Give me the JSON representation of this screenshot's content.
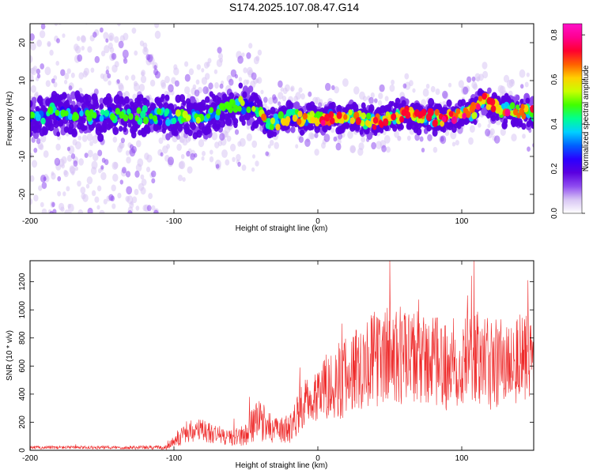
{
  "figure": {
    "title": "S174.2025.107.08.47.G14"
  },
  "chart_data": [
    {
      "type": "heatmap",
      "title": "",
      "xlabel": "Height of straight line (km)",
      "ylabel": "Frequency (Hz)",
      "xlim": [
        -200,
        150
      ],
      "ylim": [
        -25,
        25
      ],
      "xticks": [
        -200,
        -100,
        0,
        100
      ],
      "yticks": [
        -20,
        -10,
        0,
        10,
        20
      ],
      "grid": false,
      "colorbar": {
        "label": "Normalized spectral amplitude",
        "range": [
          0,
          0.85
        ],
        "ticks": [
          0.0,
          0.2,
          0.4,
          0.6,
          0.8
        ],
        "colors": [
          "#ffffff",
          "#d8c6f4",
          "#8f4cf0",
          "#5a00e0",
          "#2a00ff",
          "#0060ff",
          "#00d0ff",
          "#00ff90",
          "#40ff00",
          "#c8ff00",
          "#ffd000",
          "#ff6000",
          "#ff0030",
          "#ff0090",
          "#ff10c8"
        ]
      },
      "ridge": {
        "x": [
          -200,
          -175,
          -150,
          -125,
          -100,
          -80,
          -60,
          -50,
          -40,
          -35,
          -20,
          -10,
          0,
          20,
          40,
          60,
          80,
          100,
          110,
          115,
          120,
          130,
          150
        ],
        "y": [
          1,
          1.5,
          0.5,
          1,
          0.5,
          0,
          3,
          3.5,
          1.5,
          -2,
          1,
          0,
          0.5,
          0.5,
          -1,
          1.5,
          0,
          1,
          2,
          5,
          4,
          2,
          2
        ]
      }
    },
    {
      "type": "line",
      "title": "",
      "xlabel": "Height of straight line (km)",
      "ylabel": "SNR (10 * v/v)",
      "xlim": [
        -200,
        150
      ],
      "ylim": [
        0,
        1350
      ],
      "xticks": [
        -200,
        -100,
        0,
        100
      ],
      "yticks": [
        0,
        200,
        400,
        600,
        800,
        1000,
        1200
      ],
      "grid": false,
      "color": "#ee2a2a",
      "envelope": {
        "x": [
          -200,
          -150,
          -105,
          -100,
          -90,
          -80,
          -70,
          -60,
          -50,
          -45,
          -40,
          -30,
          -20,
          -10,
          0,
          10,
          20,
          30,
          40,
          50,
          60,
          70,
          80,
          90,
          100,
          110,
          120,
          130,
          140,
          150
        ],
        "mean": [
          20,
          20,
          20,
          70,
          130,
          140,
          110,
          90,
          110,
          190,
          210,
          140,
          150,
          330,
          420,
          470,
          520,
          620,
          650,
          680,
          640,
          650,
          620,
          600,
          650,
          660,
          600,
          640,
          650,
          620
        ],
        "spread": [
          12,
          12,
          15,
          50,
          80,
          90,
          70,
          60,
          80,
          140,
          150,
          90,
          110,
          170,
          210,
          260,
          300,
          330,
          340,
          360,
          340,
          350,
          330,
          330,
          340,
          340,
          330,
          340,
          340,
          330
        ]
      }
    }
  ]
}
